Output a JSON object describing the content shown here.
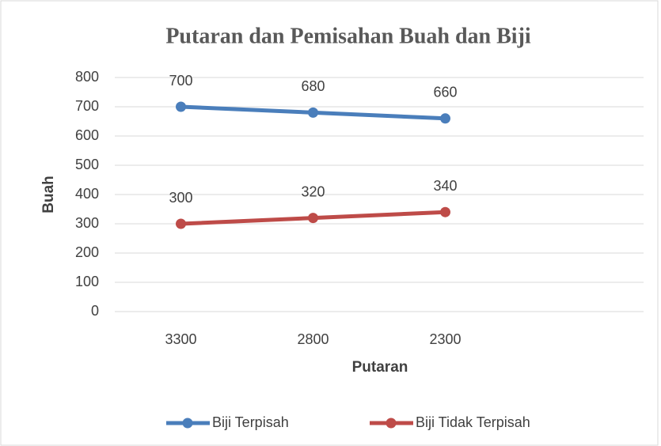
{
  "chart_data": {
    "type": "line",
    "title": "Putaran dan Pemisahan Buah dan Biji",
    "x_label": "Putaran",
    "y_label": "Buah",
    "categories": [
      "3300",
      "2800",
      "2300",
      null
    ],
    "series": [
      {
        "name": "Biji Terpisah",
        "color": "#4a7ebb",
        "values": [
          700,
          680,
          660,
          null
        ]
      },
      {
        "name": "Biji Tidak Terpisah",
        "color": "#be4b48",
        "values": [
          300,
          320,
          340,
          null
        ]
      }
    ],
    "ylim": [
      0,
      800
    ],
    "yticks": [
      0,
      100,
      200,
      300,
      400,
      500,
      600,
      700,
      800
    ],
    "grid": true,
    "legend": "bottom"
  }
}
